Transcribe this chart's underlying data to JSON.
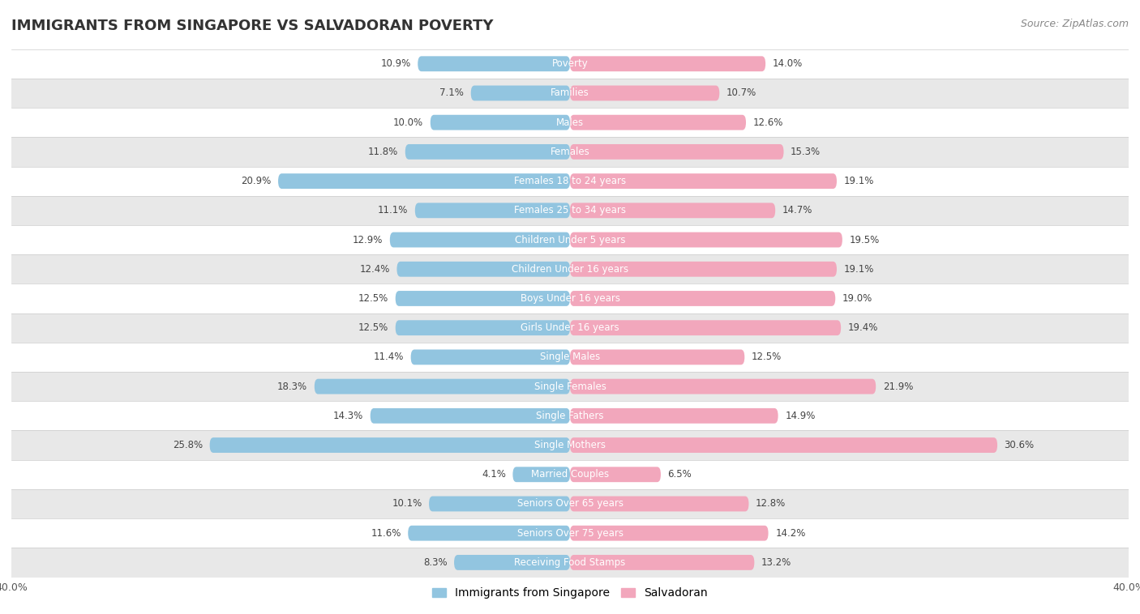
{
  "title": "IMMIGRANTS FROM SINGAPORE VS SALVADORAN POVERTY",
  "source": "Source: ZipAtlas.com",
  "categories": [
    "Poverty",
    "Families",
    "Males",
    "Females",
    "Females 18 to 24 years",
    "Females 25 to 34 years",
    "Children Under 5 years",
    "Children Under 16 years",
    "Boys Under 16 years",
    "Girls Under 16 years",
    "Single Males",
    "Single Females",
    "Single Fathers",
    "Single Mothers",
    "Married Couples",
    "Seniors Over 65 years",
    "Seniors Over 75 years",
    "Receiving Food Stamps"
  ],
  "singapore_values": [
    10.9,
    7.1,
    10.0,
    11.8,
    20.9,
    11.1,
    12.9,
    12.4,
    12.5,
    12.5,
    11.4,
    18.3,
    14.3,
    25.8,
    4.1,
    10.1,
    11.6,
    8.3
  ],
  "salvadoran_values": [
    14.0,
    10.7,
    12.6,
    15.3,
    19.1,
    14.7,
    19.5,
    19.1,
    19.0,
    19.4,
    12.5,
    21.9,
    14.9,
    30.6,
    6.5,
    12.8,
    14.2,
    13.2
  ],
  "singapore_color": "#92C5E0",
  "salvadoran_color": "#F2A7BC",
  "background_color": "#ffffff",
  "row_color_light": "#ffffff",
  "row_color_dark": "#e8e8e8",
  "bar_height": 0.52,
  "xlim": 40.0,
  "legend_singapore": "Immigrants from Singapore",
  "legend_salvadoran": "Salvadoran",
  "value_fontsize": 8.5,
  "label_fontsize": 8.5,
  "title_fontsize": 13
}
